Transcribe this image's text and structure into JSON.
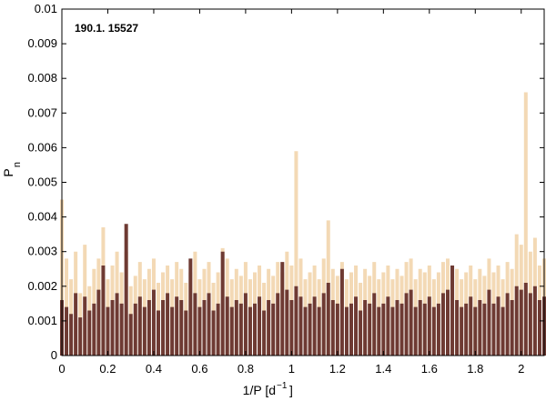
{
  "chart_data": {
    "type": "stem",
    "annotation": "190.1. 15527",
    "ylabel": "P",
    "ylabel_sub": "n",
    "xlabel": "1/P  [d",
    "xlabel_sup": "−1",
    "xlabel_end": "]",
    "xlim": [
      0,
      2.1
    ],
    "ylim": [
      0,
      0.01
    ],
    "xticks": [
      0,
      0.2,
      0.4,
      0.6,
      0.8,
      1,
      1.2,
      1.4,
      1.6,
      1.8,
      2
    ],
    "yticks": [
      0,
      0.001,
      0.002,
      0.003,
      0.004,
      0.005,
      0.006,
      0.007,
      0.008,
      0.009,
      0.01
    ],
    "x": [
      0,
      0.02,
      0.04,
      0.06,
      0.08,
      0.1,
      0.12,
      0.14,
      0.16,
      0.18,
      0.2,
      0.22,
      0.24,
      0.26,
      0.28,
      0.3,
      0.32,
      0.34,
      0.36,
      0.38,
      0.4,
      0.42,
      0.44,
      0.46,
      0.48,
      0.5,
      0.52,
      0.54,
      0.56,
      0.58,
      0.6,
      0.62,
      0.64,
      0.66,
      0.68,
      0.7,
      0.72,
      0.74,
      0.76,
      0.78,
      0.8,
      0.82,
      0.84,
      0.86,
      0.88,
      0.9,
      0.92,
      0.94,
      0.96,
      0.98,
      1,
      1.02,
      1.04,
      1.06,
      1.08,
      1.1,
      1.12,
      1.14,
      1.16,
      1.18,
      1.2,
      1.22,
      1.24,
      1.26,
      1.28,
      1.3,
      1.32,
      1.34,
      1.36,
      1.38,
      1.4,
      1.42,
      1.44,
      1.46,
      1.48,
      1.5,
      1.52,
      1.54,
      1.56,
      1.58,
      1.6,
      1.62,
      1.64,
      1.66,
      1.68,
      1.7,
      1.72,
      1.74,
      1.76,
      1.78,
      1.8,
      1.82,
      1.84,
      1.86,
      1.88,
      1.9,
      1.92,
      1.94,
      1.96,
      1.98,
      2,
      2.02,
      2.04,
      2.06,
      2.08,
      2.1
    ],
    "series": [
      {
        "color": "#f3d9b5",
        "values": [
          0.0045,
          0.0028,
          0.0022,
          0.003,
          0.0018,
          0.0032,
          0.002,
          0.0025,
          0.0028,
          0.0037,
          0.0022,
          0.0026,
          0.003,
          0.0024,
          0.003,
          0.002,
          0.0023,
          0.0027,
          0.0022,
          0.0025,
          0.0028,
          0.0021,
          0.0024,
          0.0026,
          0.0022,
          0.0027,
          0.0025,
          0.0021,
          0.0024,
          0.003,
          0.0022,
          0.0025,
          0.0027,
          0.0021,
          0.0024,
          0.0031,
          0.0028,
          0.0022,
          0.0025,
          0.0023,
          0.0027,
          0.0022,
          0.0024,
          0.0026,
          0.0021,
          0.0025,
          0.0023,
          0.0027,
          0.0024,
          0.003,
          0.0026,
          0.0059,
          0.0028,
          0.0022,
          0.0024,
          0.0026,
          0.0022,
          0.0028,
          0.0039,
          0.0025,
          0.0023,
          0.0027,
          0.0022,
          0.0024,
          0.0026,
          0.0021,
          0.0025,
          0.0023,
          0.0027,
          0.0022,
          0.0024,
          0.0026,
          0.0022,
          0.0025,
          0.0023,
          0.0027,
          0.0028,
          0.0022,
          0.0025,
          0.0024,
          0.0026,
          0.0022,
          0.0024,
          0.0027,
          0.0028,
          0.0023,
          0.0025,
          0.0022,
          0.0024,
          0.0026,
          0.0022,
          0.0025,
          0.0023,
          0.0028,
          0.0024,
          0.0026,
          0.0022,
          0.0027,
          0.0025,
          0.0035,
          0.0032,
          0.0076,
          0.003,
          0.0034,
          0.0026,
          0.0028
        ]
      },
      {
        "color": "#6e3a33",
        "values": [
          0.0016,
          0.0014,
          0.0012,
          0.0018,
          0.0011,
          0.0017,
          0.0013,
          0.0015,
          0.0019,
          0.0026,
          0.0014,
          0.0016,
          0.0018,
          0.0015,
          0.0038,
          0.0012,
          0.0015,
          0.0017,
          0.0014,
          0.0016,
          0.0019,
          0.0013,
          0.0016,
          0.0018,
          0.0014,
          0.0017,
          0.0016,
          0.0013,
          0.0028,
          0.0018,
          0.0014,
          0.0016,
          0.0018,
          0.0013,
          0.0015,
          0.003,
          0.0017,
          0.0014,
          0.0016,
          0.0015,
          0.0018,
          0.0014,
          0.0015,
          0.0017,
          0.0013,
          0.0016,
          0.0015,
          0.0018,
          0.0027,
          0.0019,
          0.0016,
          0.002,
          0.0017,
          0.0014,
          0.0015,
          0.0017,
          0.0014,
          0.0018,
          0.0021,
          0.0016,
          0.0015,
          0.0025,
          0.0014,
          0.0015,
          0.0017,
          0.0013,
          0.0016,
          0.0015,
          0.0018,
          0.0014,
          0.0015,
          0.0017,
          0.0014,
          0.0016,
          0.0015,
          0.0018,
          0.0019,
          0.0014,
          0.0016,
          0.0015,
          0.0017,
          0.0014,
          0.0015,
          0.0018,
          0.0019,
          0.0026,
          0.0016,
          0.0014,
          0.0015,
          0.0017,
          0.0014,
          0.0016,
          0.0015,
          0.0019,
          0.0015,
          0.0017,
          0.0014,
          0.0018,
          0.0016,
          0.002,
          0.0019,
          0.0021,
          0.0018,
          0.002,
          0.0016,
          0.0017
        ]
      }
    ]
  }
}
